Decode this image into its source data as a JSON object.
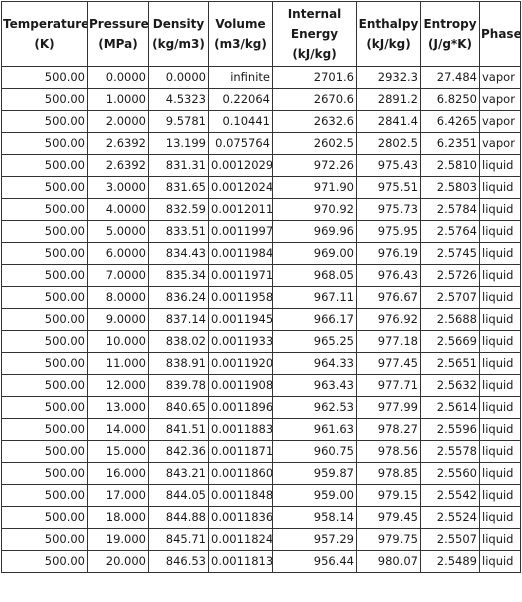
{
  "table": {
    "headers": [
      {
        "key": "temperature",
        "lines": [
          "Temperature",
          "(K)"
        ]
      },
      {
        "key": "pressure",
        "lines": [
          "Pressure",
          "(MPa)"
        ]
      },
      {
        "key": "density",
        "lines": [
          "Density",
          "(kg/m3)"
        ]
      },
      {
        "key": "volume",
        "lines": [
          "Volume",
          "(m3/kg)"
        ]
      },
      {
        "key": "internal-energy",
        "lines": [
          "Internal",
          "Energy",
          "(kJ/kg)"
        ]
      },
      {
        "key": "enthalpy",
        "lines": [
          "Enthalpy",
          "(kJ/kg)"
        ]
      },
      {
        "key": "entropy",
        "lines": [
          "Entropy",
          "(J/g*K)"
        ]
      },
      {
        "key": "phase",
        "lines": [
          "Phase"
        ]
      }
    ],
    "rows": [
      [
        "500.00",
        "0.0000",
        "0.0000",
        "infinite",
        "2701.6",
        "2932.3",
        "27.484",
        "vapor"
      ],
      [
        "500.00",
        "1.0000",
        "4.5323",
        "0.22064",
        "2670.6",
        "2891.2",
        "6.8250",
        "vapor"
      ],
      [
        "500.00",
        "2.0000",
        "9.5781",
        "0.10441",
        "2632.6",
        "2841.4",
        "6.4265",
        "vapor"
      ],
      [
        "500.00",
        "2.6392",
        "13.199",
        "0.075764",
        "2602.5",
        "2802.5",
        "6.2351",
        "vapor"
      ],
      [
        "500.00",
        "2.6392",
        "831.31",
        "0.0012029",
        "972.26",
        "975.43",
        "2.5810",
        "liquid"
      ],
      [
        "500.00",
        "3.0000",
        "831.65",
        "0.0012024",
        "971.90",
        "975.51",
        "2.5803",
        "liquid"
      ],
      [
        "500.00",
        "4.0000",
        "832.59",
        "0.0012011",
        "970.92",
        "975.73",
        "2.5784",
        "liquid"
      ],
      [
        "500.00",
        "5.0000",
        "833.51",
        "0.0011997",
        "969.96",
        "975.95",
        "2.5764",
        "liquid"
      ],
      [
        "500.00",
        "6.0000",
        "834.43",
        "0.0011984",
        "969.00",
        "976.19",
        "2.5745",
        "liquid"
      ],
      [
        "500.00",
        "7.0000",
        "835.34",
        "0.0011971",
        "968.05",
        "976.43",
        "2.5726",
        "liquid"
      ],
      [
        "500.00",
        "8.0000",
        "836.24",
        "0.0011958",
        "967.11",
        "976.67",
        "2.5707",
        "liquid"
      ],
      [
        "500.00",
        "9.0000",
        "837.14",
        "0.0011945",
        "966.17",
        "976.92",
        "2.5688",
        "liquid"
      ],
      [
        "500.00",
        "10.000",
        "838.02",
        "0.0011933",
        "965.25",
        "977.18",
        "2.5669",
        "liquid"
      ],
      [
        "500.00",
        "11.000",
        "838.91",
        "0.0011920",
        "964.33",
        "977.45",
        "2.5651",
        "liquid"
      ],
      [
        "500.00",
        "12.000",
        "839.78",
        "0.0011908",
        "963.43",
        "977.71",
        "2.5632",
        "liquid"
      ],
      [
        "500.00",
        "13.000",
        "840.65",
        "0.0011896",
        "962.53",
        "977.99",
        "2.5614",
        "liquid"
      ],
      [
        "500.00",
        "14.000",
        "841.51",
        "0.0011883",
        "961.63",
        "978.27",
        "2.5596",
        "liquid"
      ],
      [
        "500.00",
        "15.000",
        "842.36",
        "0.0011871",
        "960.75",
        "978.56",
        "2.5578",
        "liquid"
      ],
      [
        "500.00",
        "16.000",
        "843.21",
        "0.0011860",
        "959.87",
        "978.85",
        "2.5560",
        "liquid"
      ],
      [
        "500.00",
        "17.000",
        "844.05",
        "0.0011848",
        "959.00",
        "979.15",
        "2.5542",
        "liquid"
      ],
      [
        "500.00",
        "18.000",
        "844.88",
        "0.0011836",
        "958.14",
        "979.45",
        "2.5524",
        "liquid"
      ],
      [
        "500.00",
        "19.000",
        "845.71",
        "0.0011824",
        "957.29",
        "979.75",
        "2.5507",
        "liquid"
      ],
      [
        "500.00",
        "20.000",
        "846.53",
        "0.0011813",
        "956.44",
        "980.07",
        "2.5489",
        "liquid"
      ]
    ]
  }
}
